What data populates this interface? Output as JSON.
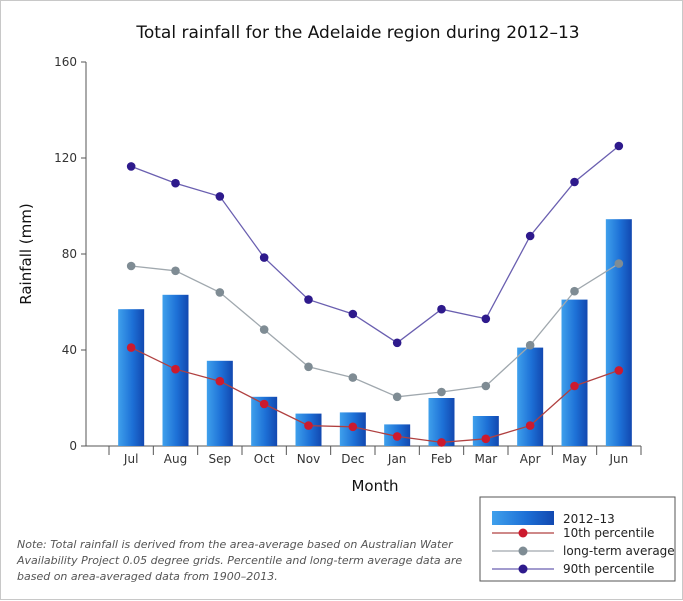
{
  "chart_data": {
    "type": "bar",
    "title": "Total rainfall for the Adelaide region during 2012–13",
    "xlabel": "Month",
    "ylabel": "Rainfall (mm)",
    "ylim": [
      0,
      160
    ],
    "yticks": [
      "0",
      "40",
      "80",
      "120",
      "160"
    ],
    "categories": [
      "Jul",
      "Aug",
      "Sep",
      "Oct",
      "Nov",
      "Dec",
      "Jan",
      "Feb",
      "Mar",
      "Apr",
      "May",
      "Jun"
    ],
    "bar_series": {
      "name": "2012–13",
      "color": "#1a66cc",
      "values": [
        57,
        63,
        35.5,
        20.5,
        13.5,
        14,
        9,
        20,
        12.5,
        41,
        61,
        94.5
      ]
    },
    "line_series": [
      {
        "name": "10th percentile",
        "line_color": "#b04040",
        "marker_color": "#cc1a2e",
        "values": [
          41,
          32,
          27,
          17.5,
          8.5,
          8,
          4,
          1.5,
          3,
          8.5,
          25,
          31.5
        ]
      },
      {
        "name": "long-term average",
        "line_color": "#a0a8ae",
        "marker_color": "#7f8c94",
        "values": [
          75,
          73,
          64,
          48.5,
          33,
          28.5,
          20.5,
          22.5,
          25,
          42,
          64.5,
          76
        ]
      },
      {
        "name": "90th percentile",
        "line_color": "#6a5fb0",
        "marker_color": "#2e1a8c",
        "values": [
          116.5,
          109.5,
          104,
          78.5,
          61,
          55,
          43,
          57,
          53,
          87.5,
          110,
          125
        ]
      }
    ],
    "legend_position": "bottom-right",
    "grid": false
  },
  "note": "Note: Total rainfall is derived from the area-average based on Australian Water Availability Project 0.05 degree grids. Percentile and long-term average data are based on area-averaged data from 1900–2013."
}
